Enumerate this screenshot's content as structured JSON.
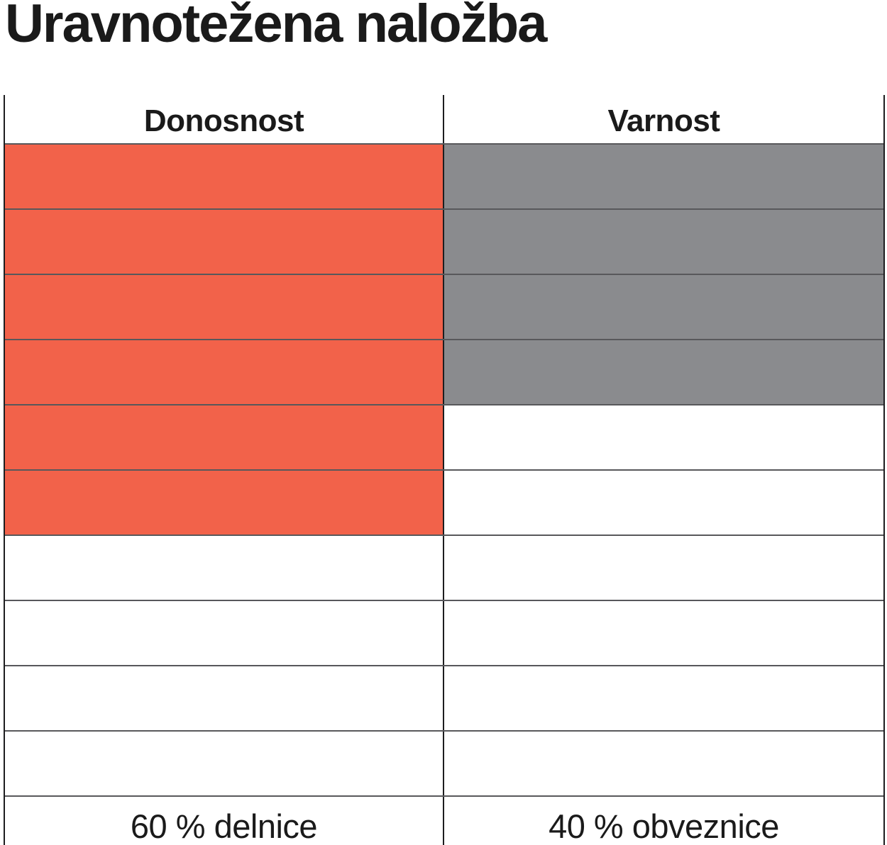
{
  "title": "Uravnotežena naložba",
  "table": {
    "headers": [
      "Donosnost",
      "Varnost"
    ],
    "footer_labels": [
      "60 % delnice",
      "40 % obveznice"
    ],
    "total_rows": 10
  },
  "colors": {
    "text": "#1A1A1A",
    "stocks_fill": "#F2624A",
    "bonds_fill": "#8A8B8E",
    "grid_horizontal": "#58585B",
    "grid_vertical": "#1D1D1F",
    "background": "#FFFFFF"
  },
  "chart_data": {
    "type": "table",
    "title": "Uravnotežena naložba",
    "description": "Balanced investment allocation shown as a 10-row grid; filled rows from the top represent each component's share",
    "grid": true,
    "legend_position": "bottom",
    "total_rows": 10,
    "columns": [
      {
        "header": "Donosnost",
        "label": "60 % delnice",
        "value_pct": 60,
        "filled_rows": 6,
        "total_rows": 10,
        "fill_color": "#F2624A"
      },
      {
        "header": "Varnost",
        "label": "40 % obveznice",
        "value_pct": 40,
        "filled_rows": 4,
        "total_rows": 10,
        "fill_color": "#8A8B8E"
      }
    ]
  }
}
